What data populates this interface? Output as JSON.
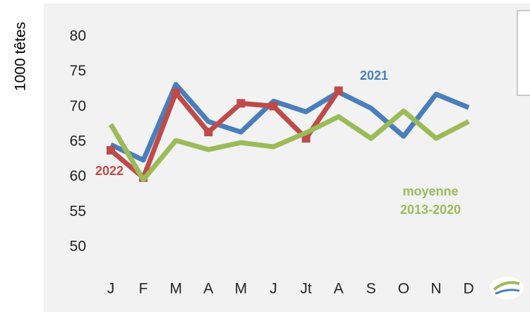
{
  "chart_data": {
    "type": "line",
    "y_label": "1000 têtes",
    "categories": [
      "J",
      "F",
      "M",
      "A",
      "M",
      "J",
      "Jt",
      "A",
      "S",
      "O",
      "N",
      "D"
    ],
    "series": [
      {
        "name": "2021",
        "color": "#4a7ebb",
        "values": [
          64.6,
          62.4,
          73.2,
          67.9,
          66.4,
          70.8,
          69.3,
          72.1,
          69.8,
          65.8,
          71.8,
          69.9
        ]
      },
      {
        "name": "2022",
        "color": "#be4b48",
        "marker": "square",
        "values": [
          63.8,
          59.9,
          72.0,
          66.4,
          70.5,
          70.1,
          65.5,
          72.3,
          null,
          null,
          null,
          null
        ]
      },
      {
        "name": "moyenne 2013-2020",
        "color": "#9bbb59",
        "values": [
          67.5,
          59.6,
          65.2,
          63.9,
          64.9,
          64.3,
          66.3,
          68.6,
          65.5,
          69.4,
          65.5,
          67.9
        ]
      }
    ],
    "ylim": [
      50,
      80
    ],
    "yticks": [
      50,
      55,
      60,
      65,
      70,
      75,
      80
    ],
    "grid": false
  }
}
